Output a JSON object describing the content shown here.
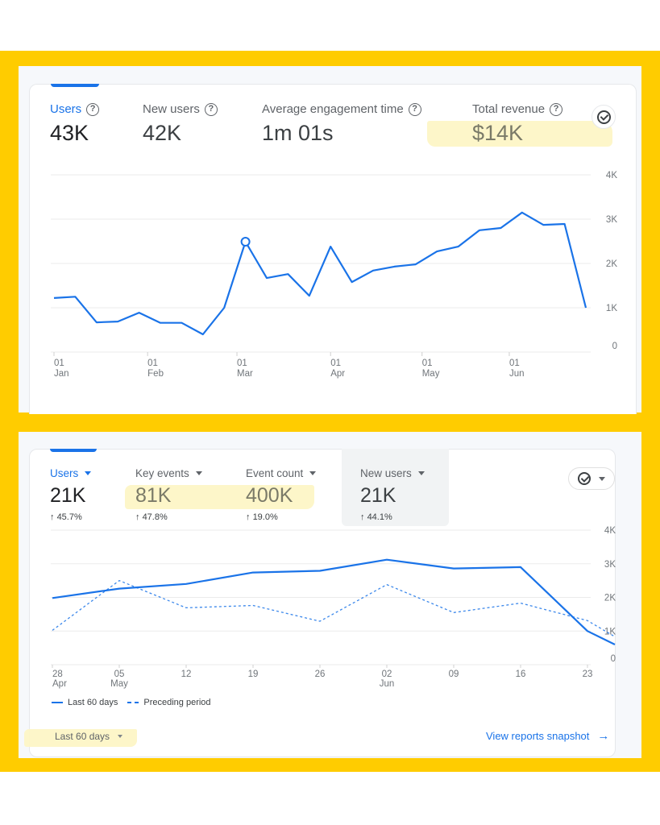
{
  "colors": {
    "frame": "#ffcc00",
    "accent": "#1a73e8",
    "highlight": "#fdf5c6"
  },
  "panel_top": {
    "metrics": [
      {
        "label": "Users",
        "value": "43K",
        "active": true,
        "icon": "help-icon"
      },
      {
        "label": "New users",
        "value": "42K",
        "active": false,
        "icon": "help-icon"
      },
      {
        "label": "Average engagement time",
        "value": "1m 01s",
        "active": false,
        "icon": "help-icon"
      },
      {
        "label": "Total revenue",
        "value": "$14K",
        "active": false,
        "icon": "help-icon"
      }
    ],
    "check_icon": "check-circle-icon"
  },
  "panel_bottom": {
    "metrics": [
      {
        "label": "Users",
        "value": "21K",
        "change": "45.7%",
        "active": true
      },
      {
        "label": "Key events",
        "value": "81K",
        "change": "47.8%",
        "active": false
      },
      {
        "label": "Event count",
        "value": "400K",
        "change": "19.0%",
        "active": false
      },
      {
        "label": "New users",
        "value": "21K",
        "change": "44.1%",
        "active": false,
        "selected": true
      }
    ],
    "legend": {
      "current": "Last 60 days",
      "previous": "Preceding period"
    },
    "date_range": "Last 60 days",
    "view_link": "View reports snapshot",
    "change_arrow": "↑",
    "link_arrow": "→"
  },
  "chart_data": [
    {
      "type": "line",
      "title": "Users",
      "xlabel": "",
      "ylabel": "",
      "yticks": [
        "0",
        "1K",
        "2K",
        "3K",
        "4K"
      ],
      "ylim": [
        0,
        4000
      ],
      "grid": true,
      "xtick_labels": [
        {
          "day": "01",
          "month": "Jan",
          "index": 0
        },
        {
          "day": "01",
          "month": "Feb",
          "index": 4.4
        },
        {
          "day": "01",
          "month": "Mar",
          "index": 8.6
        },
        {
          "day": "01",
          "month": "Apr",
          "index": 13
        },
        {
          "day": "01",
          "month": "May",
          "index": 17.3
        },
        {
          "day": "01",
          "month": "Jun",
          "index": 21.4
        }
      ],
      "series": [
        {
          "name": "Users",
          "values": [
            1220,
            1250,
            670,
            690,
            890,
            660,
            660,
            400,
            1000,
            2490,
            1670,
            1760,
            1270,
            2380,
            1580,
            1840,
            1930,
            1980,
            2270,
            2380,
            2750,
            2800,
            3150,
            2870,
            2890,
            1000
          ],
          "highlight_index": 9
        }
      ]
    },
    {
      "type": "line",
      "title": "Users (Last 60 days vs Preceding period)",
      "xlabel": "",
      "ylabel": "",
      "yticks": [
        "0",
        "1K",
        "2K",
        "3K",
        "4K"
      ],
      "ylim": [
        0,
        4000
      ],
      "grid": true,
      "categories": [
        {
          "day": "28",
          "month": "Apr"
        },
        {
          "day": "05",
          "month": "May"
        },
        {
          "day": "12",
          "month": ""
        },
        {
          "day": "19",
          "month": ""
        },
        {
          "day": "26",
          "month": ""
        },
        {
          "day": "02",
          "month": "Jun"
        },
        {
          "day": "09",
          "month": ""
        },
        {
          "day": "16",
          "month": ""
        },
        {
          "day": "23",
          "month": ""
        }
      ],
      "series": [
        {
          "name": "Last 60 days",
          "style": "solid",
          "values": [
            1980,
            2260,
            2400,
            2740,
            2790,
            3120,
            2860,
            2900,
            1000,
            600
          ]
        },
        {
          "name": "Preceding period",
          "style": "dashed",
          "values": [
            1020,
            2500,
            1690,
            1760,
            1290,
            2380,
            1550,
            1830,
            1310,
            830
          ]
        }
      ]
    }
  ]
}
